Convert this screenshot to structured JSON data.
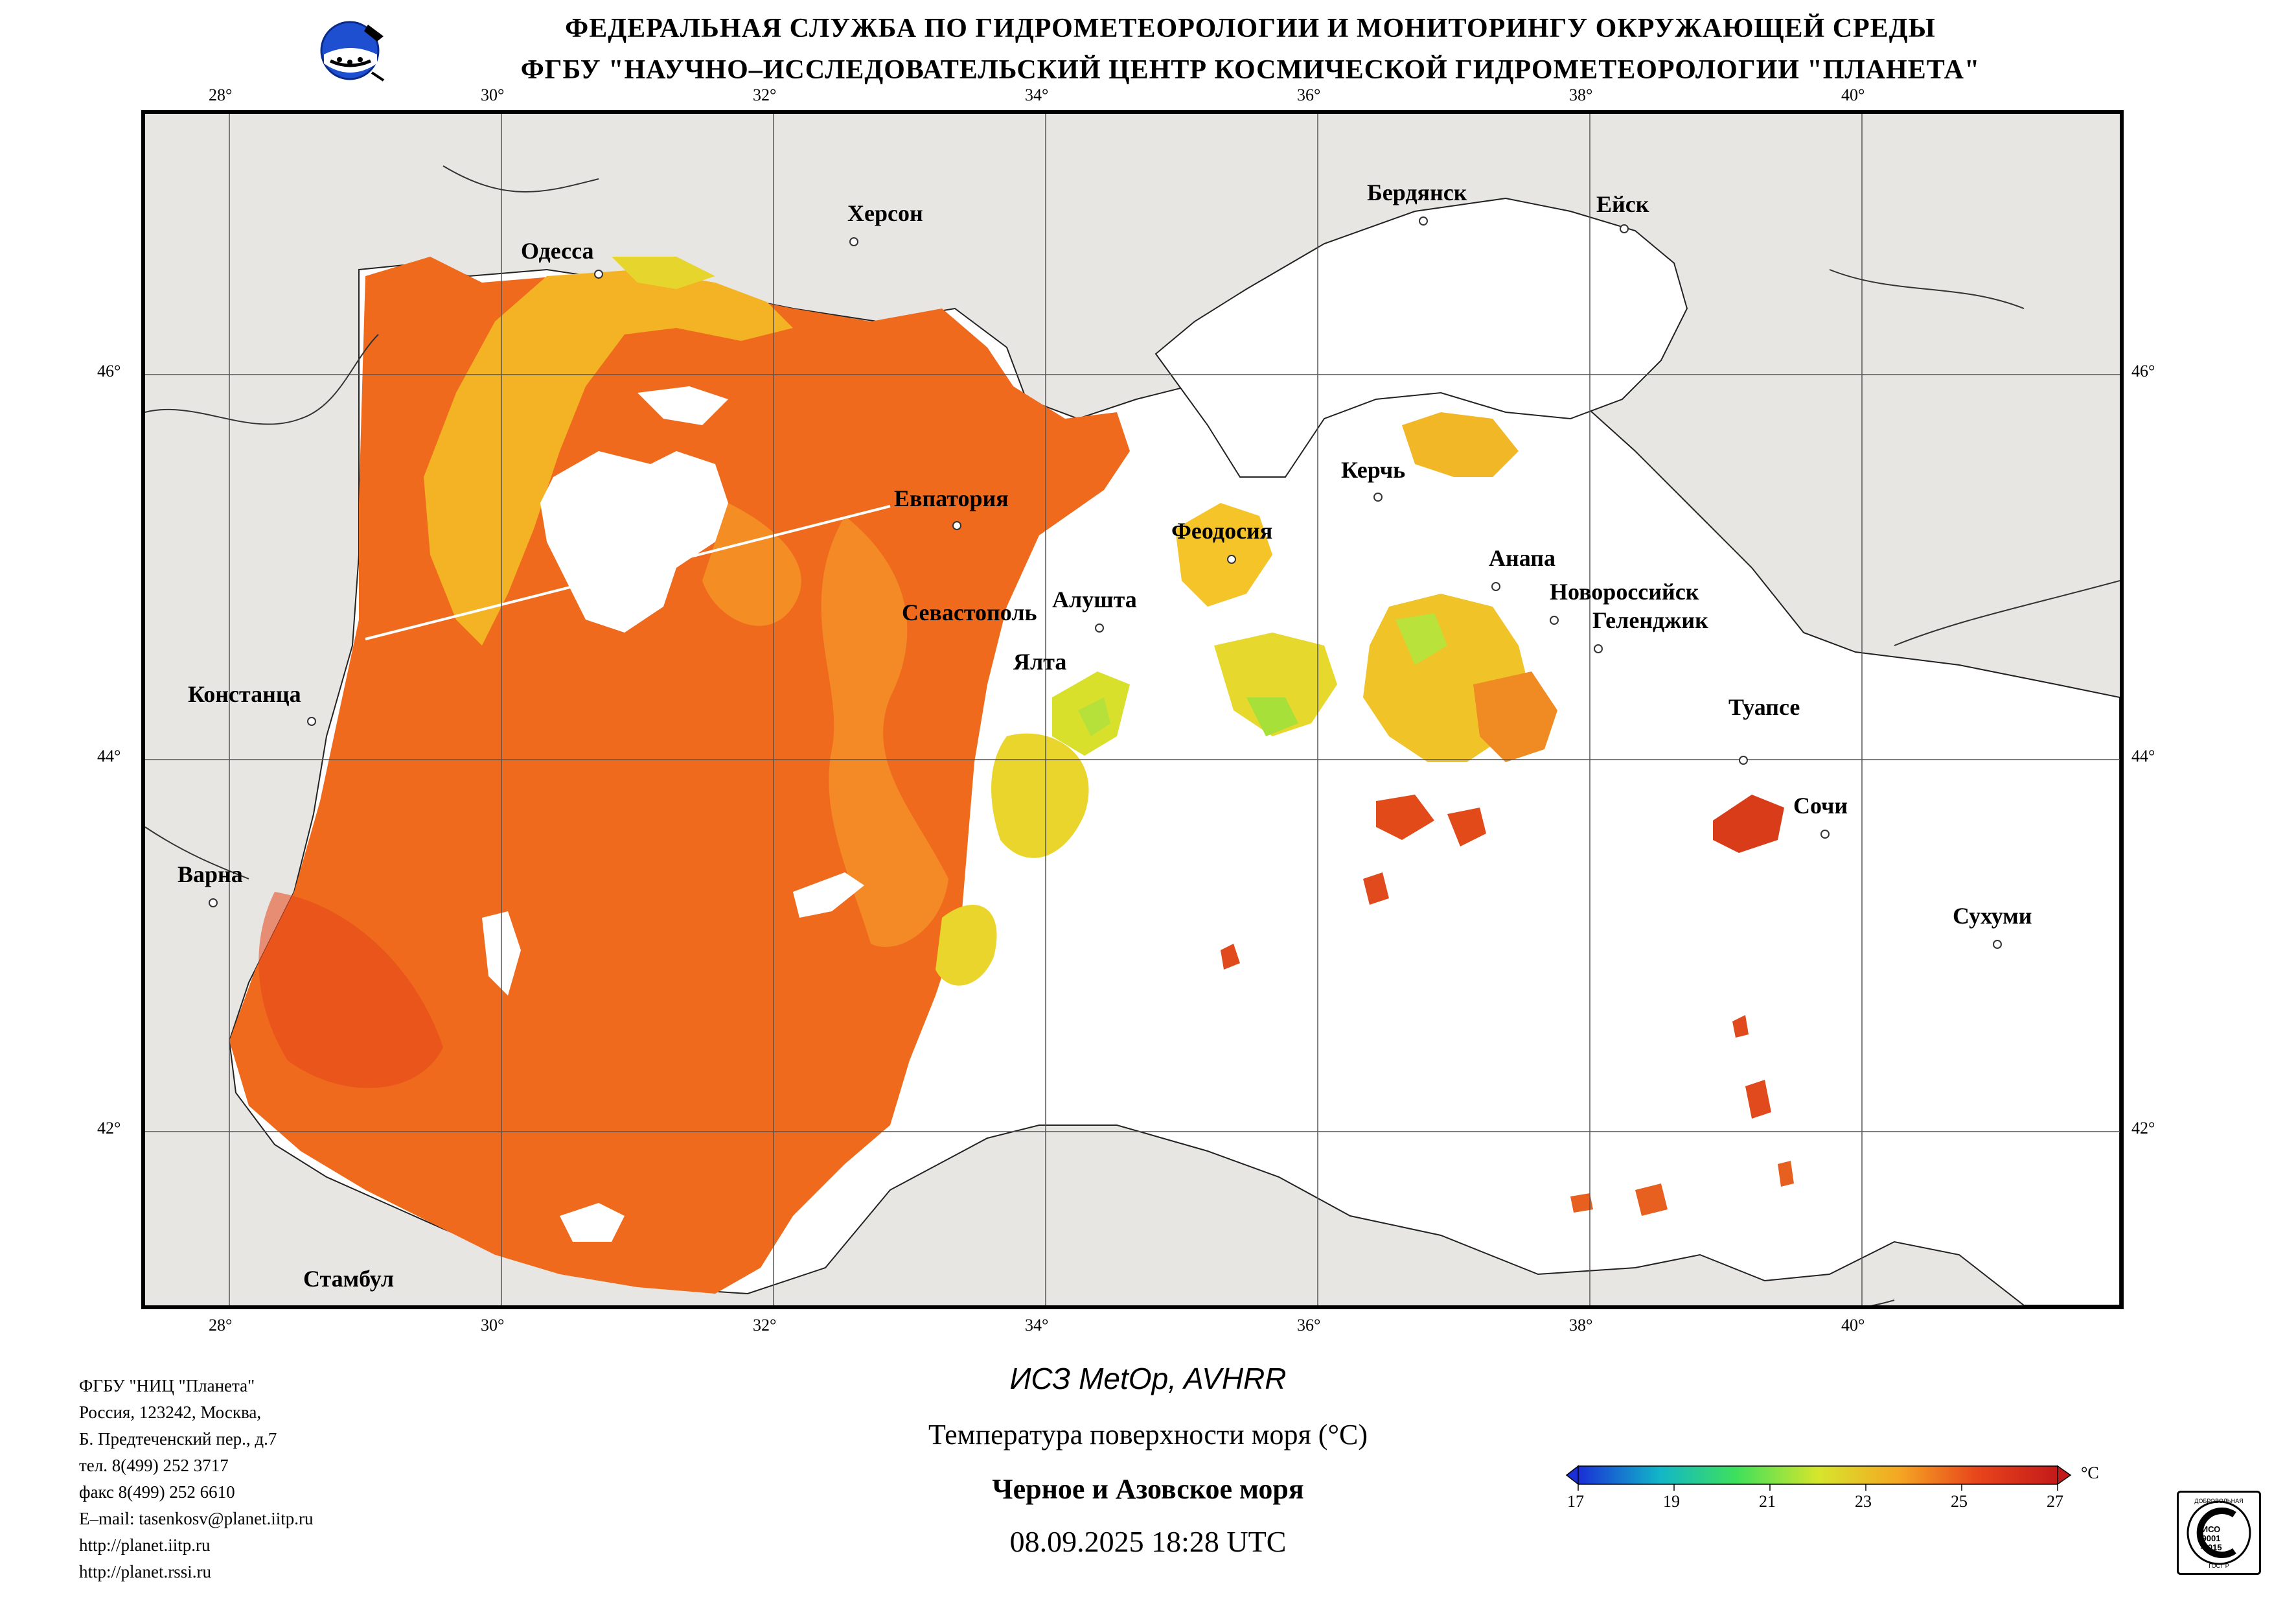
{
  "header": {
    "line1": "ФЕДЕРАЛЬНАЯ СЛУЖБА ПО ГИДРОМЕТЕОРОЛОГИИ И МОНИТОРИНГУ ОКРУЖАЮЩЕЙ СРЕДЫ",
    "line2": "ФГБУ \"НАУЧНО–ИССЛЕДОВАТЕЛЬСКИЙ ЦЕНТР КОСМИЧЕСКОЙ ГИДРОМЕТЕОРОЛОГИИ \"ПЛАНЕТА\""
  },
  "map": {
    "lon_ticks": [
      "28°",
      "30°",
      "32°",
      "34°",
      "36°",
      "38°",
      "40°"
    ],
    "lat_ticks": [
      "46°",
      "44°",
      "42°"
    ],
    "cities": {
      "odessa": "Одесса",
      "kherson": "Херсон",
      "berdyansk": "Бердянск",
      "yeysk": "Ейск",
      "evpatoria": "Евпатория",
      "kerch": "Керчь",
      "feodosia": "Феодосия",
      "anapa": "Анапа",
      "novorossiysk": "Новороссийск",
      "gelendzhik": "Геленджик",
      "sevastopol": "Севастополь",
      "alushta": "Алушта",
      "yalta": "Ялта",
      "constanta": "Констанца",
      "tuapse": "Туапсе",
      "sochi": "Сочи",
      "varna": "Варна",
      "sukhumi": "Сухуми",
      "istanbul": "Стамбул"
    },
    "colors": {
      "land": "#e8e6e2",
      "cloud": "#ffffff",
      "sst_main": "#f06a1c",
      "sst_warm": "#e8401a",
      "sst_cool": "#f7a520",
      "sst_yellow": "#e6dc2a",
      "sst_green": "#9be03c"
    }
  },
  "product": {
    "satellite": "ИСЗ MetOp, AVHRR",
    "parameter": "Температура поверхности моря (°C)",
    "region": "Черное и Азовское моря",
    "datetime": "08.09.2025 18:28 UTC"
  },
  "colorbar": {
    "labels": [
      "17",
      "19",
      "21",
      "23",
      "25",
      "27"
    ],
    "unit": "°C",
    "colors": [
      "#1a2fd6",
      "#12b6c8",
      "#3ee05c",
      "#d6e62c",
      "#f5a623",
      "#e8461c",
      "#c41a1a"
    ]
  },
  "address": {
    "org": "ФГБУ \"НИЦ \"Планета\"",
    "line1": "Россия, 123242, Москва,",
    "line2": "Б. Предтеченский пер., д.7",
    "phone": "тел. 8(499) 252 3717",
    "fax": "факс 8(499) 252 6610",
    "email": "E–mail: tasenkosv@planet.iitp.ru",
    "url1": "http://planet.iitp.ru",
    "url2": "http://planet.rssi.ru"
  },
  "iso_badge": {
    "top_text": "ДОБРОВОЛЬНАЯ",
    "mid_text": "ИСО 9001 -2015",
    "bottom_text": "ГОСТ Р"
  }
}
